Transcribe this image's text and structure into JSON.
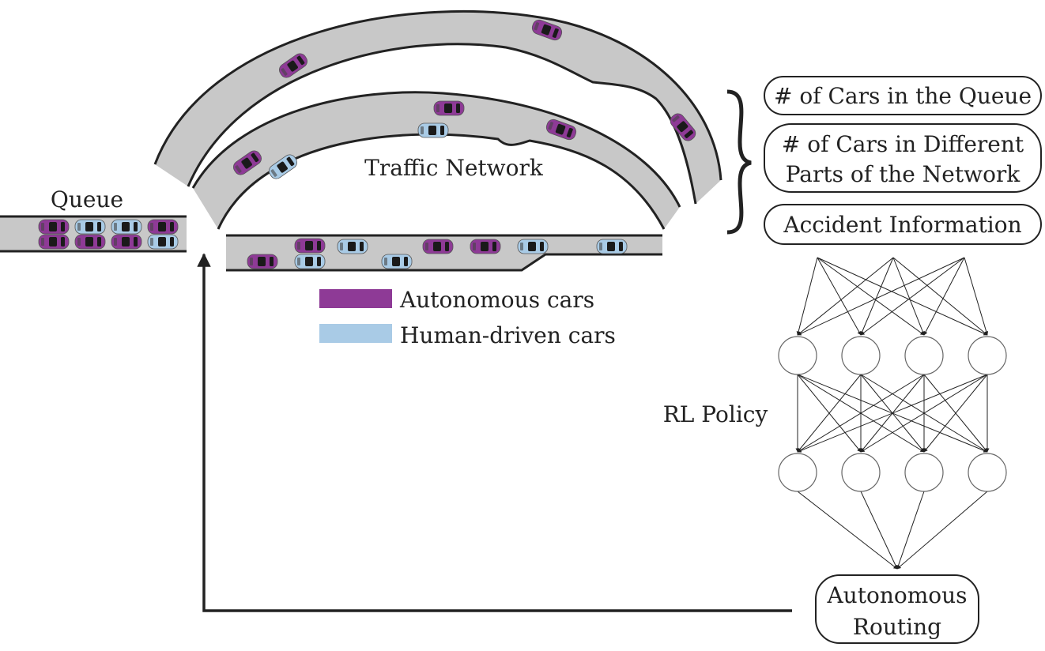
{
  "labels": {
    "queue": "Queue",
    "traffic_network": "Traffic Network",
    "rl_policy": "RL Policy"
  },
  "legend": {
    "autonomous": "Autonomous cars",
    "human": "Human-driven cars"
  },
  "state_boxes": {
    "queue_count": "# of Cars in the Queue",
    "network_count_line1": "# of Cars in Different",
    "network_count_line2": "Parts of the Network",
    "accident": "Accident Information"
  },
  "action_box": {
    "line1": "Autonomous",
    "line2": "Routing"
  },
  "colors": {
    "autonomous": "#8e3a96",
    "human": "#a9cbe6",
    "road": "#c8c8c8",
    "line": "#222222"
  },
  "network": {
    "layer_sizes": [
      4,
      4,
      1
    ]
  }
}
